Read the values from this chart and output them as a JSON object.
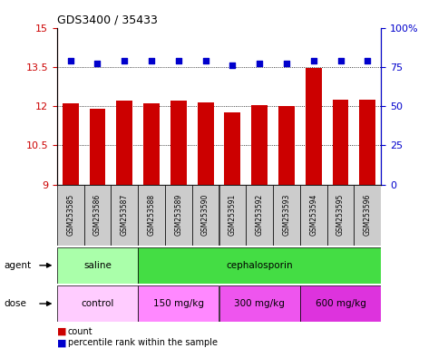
{
  "title": "GDS3400 / 35433",
  "samples": [
    "GSM253585",
    "GSM253586",
    "GSM253587",
    "GSM253588",
    "GSM253589",
    "GSM253590",
    "GSM253591",
    "GSM253592",
    "GSM253593",
    "GSM253594",
    "GSM253595",
    "GSM253596"
  ],
  "bar_values": [
    12.1,
    11.9,
    12.2,
    12.1,
    12.2,
    12.15,
    11.75,
    12.05,
    12.0,
    13.45,
    12.25,
    12.25
  ],
  "dot_values": [
    79,
    77,
    79,
    79,
    79,
    79,
    76,
    77,
    77,
    79,
    79,
    79
  ],
  "ylim_left": [
    9,
    15
  ],
  "ylim_right": [
    0,
    100
  ],
  "yticks_left": [
    9,
    10.5,
    12,
    13.5,
    15
  ],
  "yticks_right": [
    0,
    25,
    50,
    75,
    100
  ],
  "bar_color": "#cc0000",
  "dot_color": "#0000cc",
  "agent_row": [
    {
      "label": "saline",
      "start": 0,
      "end": 3,
      "color": "#aaffaa"
    },
    {
      "label": "cephalosporin",
      "start": 3,
      "end": 12,
      "color": "#44dd44"
    }
  ],
  "dose_row": [
    {
      "label": "control",
      "start": 0,
      "end": 3,
      "color": "#ffccff"
    },
    {
      "label": "150 mg/kg",
      "start": 3,
      "end": 6,
      "color": "#ff88ff"
    },
    {
      "label": "300 mg/kg",
      "start": 6,
      "end": 9,
      "color": "#ee55ee"
    },
    {
      "label": "600 mg/kg",
      "start": 9,
      "end": 12,
      "color": "#dd33dd"
    }
  ],
  "xlabel_color": "#cc0000",
  "ylabel_right_color": "#0000cc",
  "sample_label_bg": "#cccccc",
  "legend_bar_label": "count",
  "legend_dot_label": "percentile rank within the sample"
}
